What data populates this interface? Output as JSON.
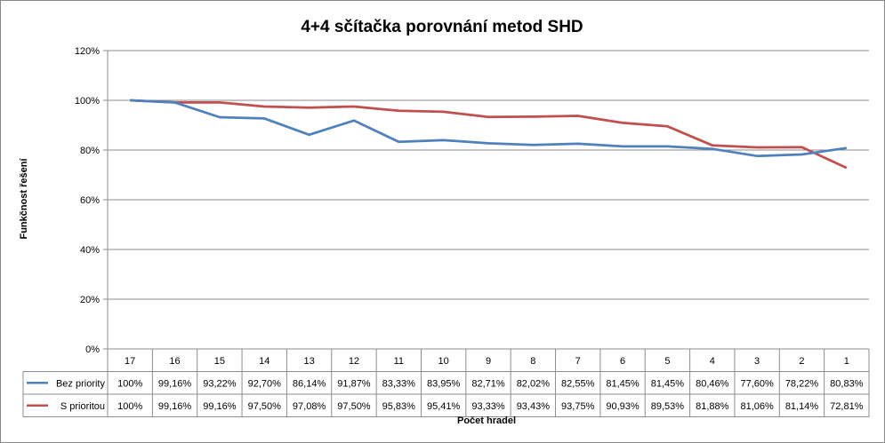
{
  "chart_data": {
    "type": "line",
    "title": "4+4 sčítačka porovnání metod SHD",
    "xlabel": "Počet hradel",
    "ylabel": "Funkčnost řešení",
    "ylim": [
      0,
      120
    ],
    "yticks": [
      "0%",
      "20%",
      "40%",
      "60%",
      "80%",
      "100%",
      "120%"
    ],
    "grid": "horizontal",
    "legend": "data table",
    "categories": [
      "17",
      "16",
      "15",
      "14",
      "13",
      "12",
      "11",
      "10",
      "9",
      "8",
      "7",
      "6",
      "5",
      "4",
      "3",
      "2",
      "1"
    ],
    "series": [
      {
        "name": "Bez priority",
        "color": "#4F81BD",
        "values": [
          100,
          99.16,
          93.22,
          92.7,
          86.14,
          91.87,
          83.33,
          83.95,
          82.71,
          82.02,
          82.55,
          81.45,
          81.45,
          80.46,
          77.6,
          78.22,
          80.83
        ],
        "labels": [
          "100%",
          "99,16%",
          "93,22%",
          "92,70%",
          "86,14%",
          "91,87%",
          "83,33%",
          "83,95%",
          "82,71%",
          "82,02%",
          "82,55%",
          "81,45%",
          "81,45%",
          "80,46%",
          "77,60%",
          "78,22%",
          "80,83%"
        ]
      },
      {
        "name": "S prioritou",
        "color": "#C0504D",
        "values": [
          100,
          99.16,
          99.16,
          97.5,
          97.08,
          97.5,
          95.83,
          95.41,
          93.33,
          93.43,
          93.75,
          90.93,
          89.53,
          81.88,
          81.06,
          81.14,
          72.81
        ],
        "labels": [
          "100%",
          "99,16%",
          "99,16%",
          "97,50%",
          "97,08%",
          "97,50%",
          "95,83%",
          "95,41%",
          "93,33%",
          "93,43%",
          "93,75%",
          "90,93%",
          "89,53%",
          "81,88%",
          "81,06%",
          "81,14%",
          "72,81%"
        ]
      }
    ]
  }
}
